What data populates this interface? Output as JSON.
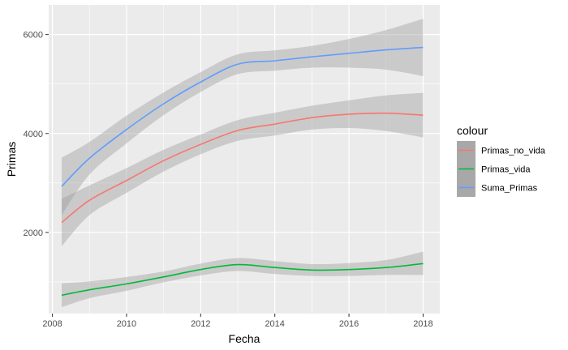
{
  "chart_data": {
    "type": "line",
    "xlabel": "Fecha",
    "ylabel": "Primas",
    "xlim": [
      2007.9,
      2018.45
    ],
    "ylim": [
      360,
      6600
    ],
    "x_ticks": [
      2008,
      2010,
      2012,
      2014,
      2016,
      2018
    ],
    "x_tick_labels": [
      "2008",
      "2010",
      "2012",
      "2014",
      "2016",
      "2018"
    ],
    "y_ticks": [
      2000,
      4000,
      6000
    ],
    "y_tick_labels": [
      "2000",
      "4000",
      "6000"
    ],
    "grid": true,
    "legend": {
      "title": "colour",
      "position": "right"
    },
    "series": [
      {
        "name": "Primas_no_vida",
        "color": "#F8766D",
        "x": [
          2008.25,
          2009,
          2010,
          2011,
          2012,
          2013,
          2014,
          2015,
          2016,
          2017,
          2018
        ],
        "y": [
          2200,
          2650,
          3050,
          3450,
          3780,
          4060,
          4190,
          4320,
          4390,
          4410,
          4370
        ],
        "lower": [
          1720,
          2350,
          2800,
          3230,
          3580,
          3850,
          3960,
          4080,
          4110,
          4050,
          3920
        ],
        "upper": [
          2680,
          2950,
          3300,
          3670,
          3980,
          4270,
          4420,
          4560,
          4670,
          4770,
          4820
        ]
      },
      {
        "name": "Primas_vida",
        "color": "#00BA38",
        "x": [
          2008.25,
          2009,
          2010,
          2011,
          2012,
          2013,
          2014,
          2015,
          2016,
          2017,
          2018
        ],
        "y": [
          730,
          840,
          960,
          1100,
          1250,
          1350,
          1290,
          1240,
          1250,
          1290,
          1370
        ],
        "lower": [
          490,
          670,
          820,
          990,
          1130,
          1220,
          1160,
          1120,
          1120,
          1140,
          1140
        ],
        "upper": [
          970,
          1010,
          1100,
          1210,
          1370,
          1480,
          1420,
          1360,
          1380,
          1440,
          1610
        ]
      },
      {
        "name": "Suma_Primas",
        "color": "#619CFF",
        "x": [
          2008.25,
          2009,
          2010,
          2011,
          2012,
          2013,
          2014,
          2015,
          2016,
          2017,
          2018
        ],
        "y": [
          2930,
          3500,
          4080,
          4600,
          5040,
          5400,
          5470,
          5550,
          5620,
          5690,
          5740
        ],
        "lower": [
          2350,
          3170,
          3800,
          4370,
          4840,
          5200,
          5270,
          5330,
          5330,
          5290,
          5160
        ],
        "upper": [
          3510,
          3830,
          4360,
          4830,
          5240,
          5600,
          5680,
          5770,
          5910,
          6090,
          6320
        ]
      }
    ]
  }
}
